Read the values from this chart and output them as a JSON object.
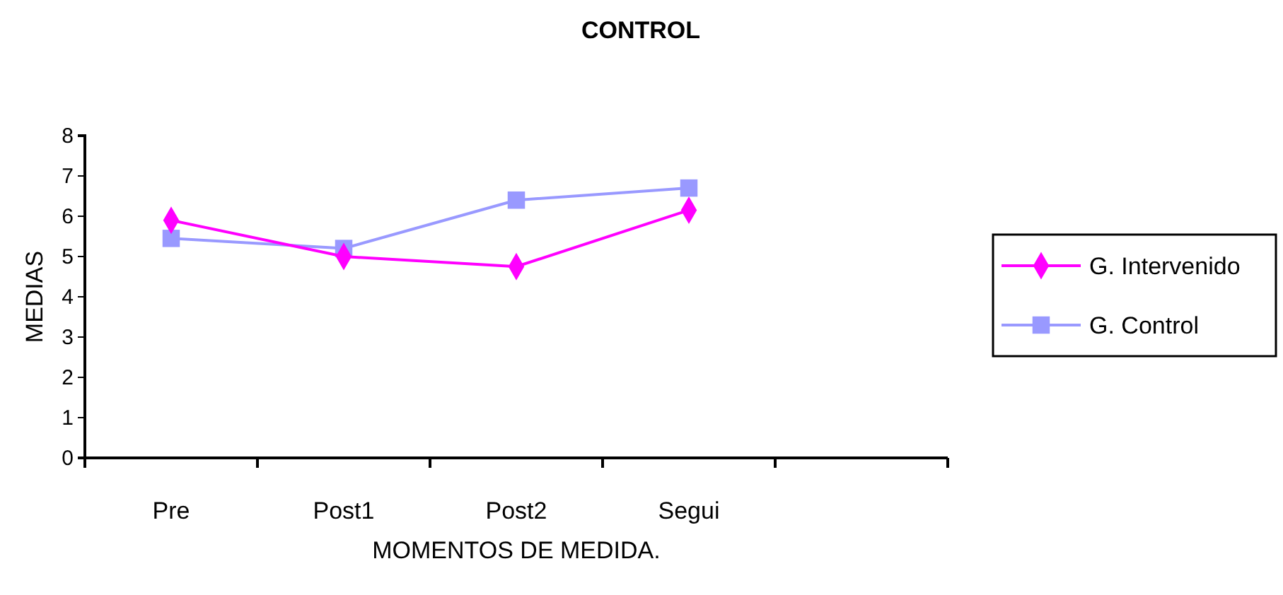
{
  "chart_data": {
    "type": "line",
    "title": "CONTROL",
    "xlabel": "MOMENTOS DE MEDIDA.",
    "ylabel": "MEDIAS",
    "categories": [
      "Pre",
      "Post1",
      "Post2",
      "Segui",
      null
    ],
    "series": [
      {
        "name": "G. Intervenido",
        "color": "#ff00ff",
        "marker": "diamond",
        "values": [
          5.9,
          5.0,
          4.75,
          6.15,
          null
        ]
      },
      {
        "name": "G. Control",
        "color": "#9999ff",
        "marker": "square",
        "values": [
          5.45,
          5.2,
          6.4,
          6.7,
          null
        ]
      }
    ],
    "ylim": [
      0,
      8
    ],
    "yticks": [
      0,
      1,
      2,
      3,
      4,
      5,
      6,
      7,
      8
    ],
    "grid": false,
    "legend": "right"
  }
}
